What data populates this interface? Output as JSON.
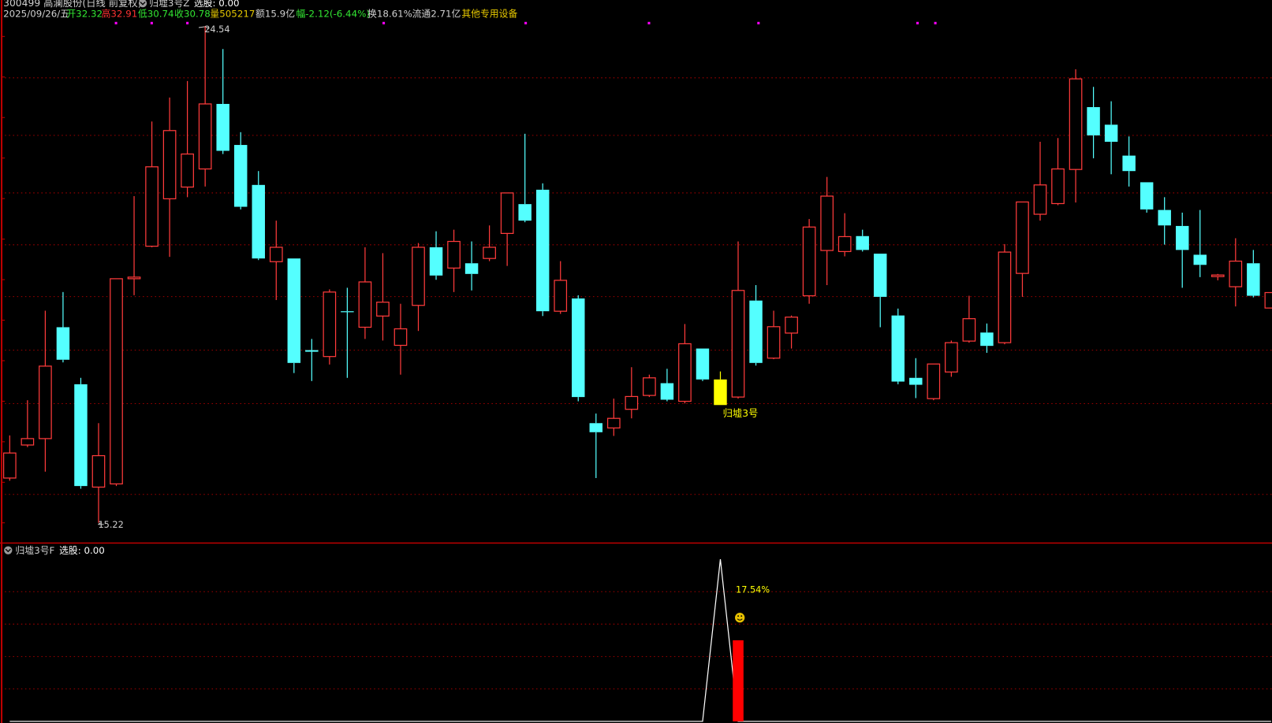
{
  "header": {
    "stock_title": "300499 高澜股份(日线 前复权)",
    "indicator_name": "归墟3号Z",
    "indicator_value": "选股: 0.00",
    "date": "2025/09/26/五",
    "open": "开32.32",
    "high": "高32.91",
    "low": "低30.74",
    "close": "收30.78",
    "volume": "量505217",
    "amount": "额15.9亿",
    "change": "幅-2.12(-6.44%)",
    "turnover": "换18.61%",
    "float_cap": "流通2.71亿",
    "industry": "其他专用设备"
  },
  "sub_panel": {
    "indicator_name": "归墟3号F",
    "indicator_value": "选股: 0.00",
    "pct_label": "17.54%",
    "smiley_icon": "smiley-face-icon"
  },
  "colors": {
    "up": "#ff3b3b",
    "down": "#54ffff",
    "signal": "#ffff00",
    "grid": "#a00000",
    "border": "#c00000",
    "marker": "#ff00ff",
    "indicator_line": "#ffffff",
    "indicator_bar": "#ff0000"
  },
  "chart_data": [
    {
      "type": "candlestick",
      "title": "",
      "ylim": [
        14.84,
        25.03
      ],
      "grid": true,
      "max_label": "24.54",
      "min_label": "15.22",
      "signal_label": "归墟3号",
      "signal_index": 40,
      "ohlc_fields": [
        "open",
        "high",
        "low",
        "close"
      ],
      "ohlc": [
        [
          16.06,
          16.86,
          16.01,
          16.53
        ],
        [
          16.68,
          17.52,
          16.64,
          16.8
        ],
        [
          16.8,
          19.2,
          16.18,
          18.16
        ],
        [
          18.89,
          19.55,
          18.23,
          18.28
        ],
        [
          17.82,
          17.94,
          15.86,
          15.91
        ],
        [
          15.89,
          17.09,
          15.22,
          16.48
        ],
        [
          15.95,
          19.8,
          15.91,
          19.8
        ],
        [
          19.8,
          21.35,
          19.49,
          19.83
        ],
        [
          20.41,
          22.75,
          20.39,
          21.9
        ],
        [
          21.3,
          23.2,
          20.21,
          22.58
        ],
        [
          21.52,
          23.51,
          21.33,
          22.14
        ],
        [
          21.86,
          24.54,
          21.53,
          23.08
        ],
        [
          23.08,
          24.11,
          22.14,
          22.2
        ],
        [
          22.31,
          22.55,
          21.1,
          21.15
        ],
        [
          21.56,
          21.82,
          20.15,
          20.18
        ],
        [
          20.12,
          20.89,
          19.4,
          20.39
        ],
        [
          20.18,
          20.18,
          18.03,
          18.22
        ],
        [
          18.46,
          18.67,
          17.88,
          18.43
        ],
        [
          18.34,
          19.6,
          18.19,
          19.55
        ],
        [
          19.19,
          19.63,
          17.94,
          19.18
        ],
        [
          18.89,
          20.39,
          18.67,
          19.74
        ],
        [
          19.1,
          20.28,
          18.64,
          19.36
        ],
        [
          18.55,
          19.33,
          18.0,
          18.86
        ],
        [
          19.3,
          20.47,
          18.82,
          20.39
        ],
        [
          20.39,
          20.69,
          19.78,
          19.86
        ],
        [
          20.0,
          20.72,
          19.55,
          20.5
        ],
        [
          20.09,
          20.5,
          19.58,
          19.89
        ],
        [
          20.18,
          20.8,
          20.13,
          20.39
        ],
        [
          20.65,
          21.41,
          20.04,
          21.41
        ],
        [
          21.2,
          22.52,
          20.86,
          20.89
        ],
        [
          21.47,
          21.59,
          19.1,
          19.19
        ],
        [
          19.19,
          20.13,
          19.14,
          19.77
        ],
        [
          19.43,
          19.49,
          17.5,
          17.58
        ],
        [
          17.09,
          17.27,
          16.06,
          16.92
        ],
        [
          17.0,
          17.55,
          16.85,
          17.18
        ],
        [
          17.35,
          18.14,
          17.18,
          17.59
        ],
        [
          17.61,
          18.0,
          17.58,
          17.94
        ],
        [
          17.84,
          18.11,
          17.5,
          17.53
        ],
        [
          17.5,
          18.95,
          17.46,
          18.58
        ],
        [
          18.49,
          18.49,
          17.88,
          17.91
        ],
        [
          17.91,
          18.06,
          17.43,
          17.43
        ],
        [
          17.58,
          20.5,
          17.55,
          19.58
        ],
        [
          19.39,
          19.68,
          18.17,
          18.22
        ],
        [
          18.31,
          19.2,
          18.29,
          18.9
        ],
        [
          18.78,
          19.11,
          18.49,
          19.08
        ],
        [
          19.48,
          20.92,
          19.33,
          20.77
        ],
        [
          20.33,
          21.71,
          19.68,
          21.35
        ],
        [
          20.31,
          21.03,
          20.22,
          20.59
        ],
        [
          20.6,
          20.72,
          20.31,
          20.34
        ],
        [
          20.27,
          20.27,
          18.89,
          19.46
        ],
        [
          19.11,
          19.24,
          17.82,
          17.87
        ],
        [
          17.94,
          18.31,
          17.56,
          17.81
        ],
        [
          17.55,
          18.2,
          17.52,
          18.2
        ],
        [
          18.05,
          18.64,
          17.96,
          18.6
        ],
        [
          18.63,
          19.48,
          18.6,
          19.05
        ],
        [
          18.79,
          18.96,
          18.41,
          18.54
        ],
        [
          18.6,
          20.45,
          18.57,
          20.3
        ],
        [
          19.9,
          21.24,
          19.46,
          21.24
        ],
        [
          21.01,
          22.37,
          20.89,
          21.56
        ],
        [
          21.21,
          22.44,
          21.18,
          21.86
        ],
        [
          21.85,
          23.73,
          21.23,
          23.55
        ],
        [
          23.02,
          23.4,
          22.06,
          22.49
        ],
        [
          22.69,
          23.13,
          21.76,
          22.37
        ],
        [
          22.11,
          22.47,
          21.53,
          21.82
        ],
        [
          21.61,
          21.61,
          21.04,
          21.1
        ],
        [
          21.09,
          21.33,
          20.44,
          20.8
        ],
        [
          20.79,
          21.04,
          19.63,
          20.34
        ],
        [
          20.25,
          21.09,
          19.83,
          20.06
        ],
        [
          19.84,
          19.89,
          19.77,
          19.87
        ],
        [
          19.65,
          20.56,
          19.28,
          20.13
        ],
        [
          20.09,
          20.34,
          19.45,
          19.48
        ],
        [
          19.25,
          19.54,
          19.25,
          19.54
        ]
      ]
    },
    {
      "type": "line+bar",
      "title": "",
      "ylim": [
        0,
        110
      ],
      "grid": true,
      "line": [
        0,
        0,
        0,
        0,
        0,
        0,
        0,
        0,
        0,
        0,
        0,
        0,
        0,
        0,
        0,
        0,
        0,
        0,
        0,
        0,
        0,
        0,
        0,
        0,
        0,
        0,
        0,
        0,
        0,
        0,
        0,
        0,
        0,
        0,
        0,
        0,
        0,
        0,
        0,
        0,
        100,
        0,
        0,
        0,
        0,
        0,
        0,
        0,
        0,
        0,
        0,
        0,
        0,
        0,
        0,
        0,
        0,
        0,
        0,
        0,
        0,
        0,
        0,
        0,
        0,
        0,
        0,
        0,
        0,
        0,
        0,
        0
      ],
      "bars": [
        0,
        0,
        0,
        0,
        0,
        0,
        0,
        0,
        0,
        0,
        0,
        0,
        0,
        0,
        0,
        0,
        0,
        0,
        0,
        0,
        0,
        0,
        0,
        0,
        0,
        0,
        0,
        0,
        0,
        0,
        0,
        0,
        0,
        0,
        0,
        0,
        0,
        0,
        0,
        0,
        0,
        50,
        0,
        0,
        0,
        0,
        0,
        0,
        0,
        0,
        0,
        0,
        0,
        0,
        0,
        0,
        0,
        0,
        0,
        0,
        0,
        0,
        0,
        0,
        0,
        0,
        0,
        0,
        0,
        0,
        0,
        0
      ]
    }
  ]
}
